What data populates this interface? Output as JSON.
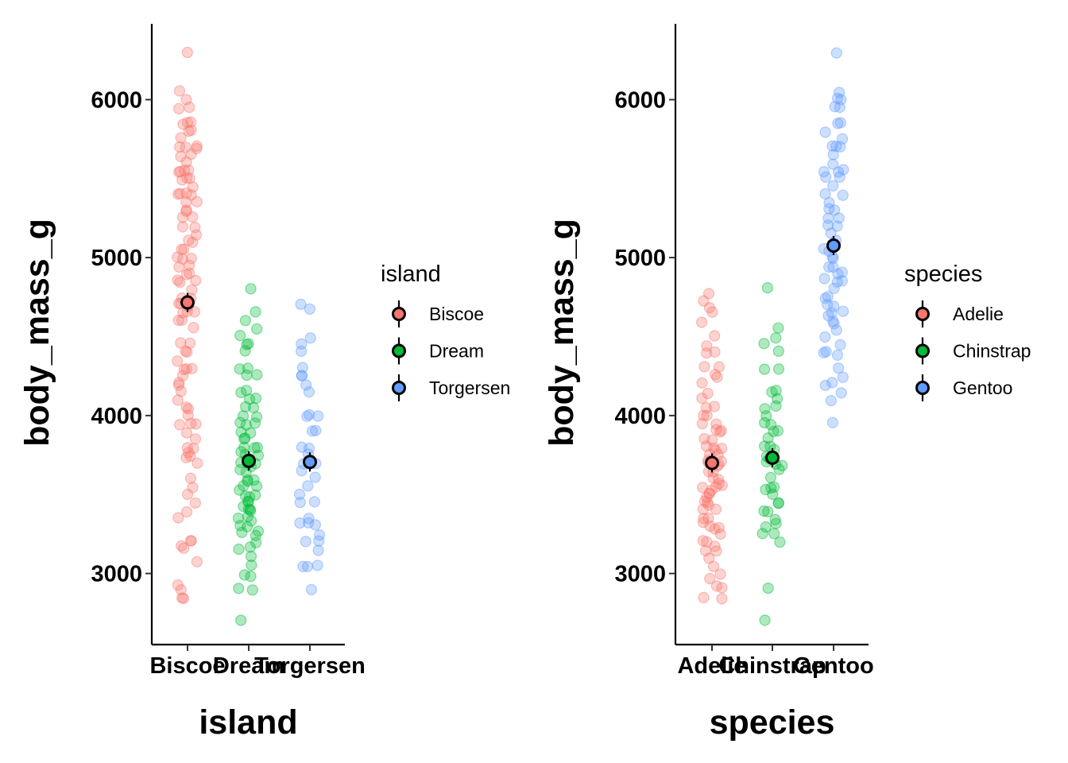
{
  "chart_data": [
    {
      "type": "scatter",
      "subtype": "jitter-with-mean-errorbar",
      "xlabel": "island",
      "ylabel": "body_mass_g",
      "categories": [
        "Biscoe",
        "Dream",
        "Torgersen"
      ],
      "colors": [
        "#F8766D",
        "#00BA38",
        "#619CFF"
      ],
      "ylim": [
        2550,
        6480
      ],
      "yticks": [
        "3000",
        "4000",
        "5000",
        "6000"
      ],
      "legend": {
        "title": "island",
        "position": "right",
        "entries": [
          "Biscoe",
          "Dream",
          "Torgersen"
        ]
      },
      "grid": false,
      "means": [
        4716,
        3713,
        3706
      ],
      "points": [
        [
          6300,
          6050,
          6000,
          5950,
          5950,
          5850,
          5850,
          5850,
          5800,
          5800,
          5750,
          5700,
          5700,
          5700,
          5700,
          5650,
          5650,
          5600,
          5550,
          5550,
          5550,
          5550,
          5500,
          5500,
          5500,
          5450,
          5400,
          5400,
          5400,
          5400,
          5350,
          5350,
          5300,
          5300,
          5250,
          5250,
          5200,
          5200,
          5150,
          5100,
          5100,
          5050,
          5050,
          5000,
          5000,
          5000,
          4950,
          4950,
          4900,
          4900,
          4850,
          4850,
          4850,
          4800,
          4750,
          4750,
          4700,
          4700,
          4700,
          4650,
          4650,
          4650,
          4600,
          4600,
          4550,
          4450,
          4450,
          4400,
          4400,
          4350,
          4300,
          4300,
          4300,
          4250,
          4200,
          4200,
          4150,
          4100,
          4050,
          4050,
          4000,
          3950,
          3950,
          3950,
          3900,
          3850,
          3800,
          3800,
          3775,
          3750,
          3725,
          3700,
          3600,
          3550,
          3500,
          3450,
          3350,
          3400,
          3200,
          3200,
          3175,
          3150,
          3075,
          2925,
          2900,
          2850,
          2850
        ],
        [
          4800,
          4650,
          4600,
          4550,
          4500,
          4450,
          4450,
          4400,
          4300,
          4300,
          4250,
          4250,
          4150,
          4150,
          4100,
          4100,
          4050,
          4050,
          4000,
          4000,
          3950,
          3950,
          3950,
          3900,
          3900,
          3850,
          3850,
          3800,
          3800,
          3800,
          3775,
          3750,
          3750,
          3725,
          3700,
          3700,
          3700,
          3675,
          3650,
          3650,
          3600,
          3600,
          3575,
          3550,
          3550,
          3525,
          3500,
          3500,
          3475,
          3450,
          3450,
          3425,
          3400,
          3400,
          3400,
          3350,
          3350,
          3325,
          3300,
          3300,
          3275,
          3250,
          3250,
          3200,
          3175,
          3150,
          3100,
          3050,
          3000,
          2975,
          2900,
          2900,
          2700
        ],
        [
          4700,
          4675,
          4500,
          4450,
          4400,
          4300,
          4250,
          4250,
          4200,
          4150,
          4000,
          4000,
          4000,
          3900,
          3900,
          3800,
          3800,
          3750,
          3700,
          3700,
          3650,
          3600,
          3550,
          3500,
          3450,
          3450,
          3350,
          3325,
          3325,
          3300,
          3250,
          3200,
          3200,
          3150,
          3050,
          3050,
          3050,
          2900
        ]
      ]
    },
    {
      "type": "scatter",
      "subtype": "jitter-with-mean-errorbar",
      "xlabel": "species",
      "ylabel": "body_mass_g",
      "categories": [
        "Adelie",
        "Chinstrap",
        "Gentoo"
      ],
      "colors": [
        "#F8766D",
        "#00BA38",
        "#619CFF"
      ],
      "ylim": [
        2550,
        6480
      ],
      "yticks": [
        "3000",
        "4000",
        "5000",
        "6000"
      ],
      "legend": {
        "title": "species",
        "position": "right",
        "entries": [
          "Adelie",
          "Chinstrap",
          "Gentoo"
        ]
      },
      "grid": false,
      "means": [
        3700,
        3733,
        5076
      ],
      "points": [
        [
          4775,
          4725,
          4675,
          4650,
          4600,
          4500,
          4450,
          4400,
          4400,
          4300,
          4300,
          4250,
          4250,
          4200,
          4150,
          4100,
          4050,
          4050,
          4000,
          4000,
          3950,
          3950,
          3900,
          3900,
          3900,
          3850,
          3850,
          3800,
          3800,
          3800,
          3775,
          3750,
          3750,
          3725,
          3700,
          3700,
          3700,
          3675,
          3650,
          3650,
          3600,
          3600,
          3575,
          3550,
          3550,
          3550,
          3525,
          3500,
          3500,
          3475,
          3450,
          3450,
          3425,
          3400,
          3400,
          3350,
          3350,
          3325,
          3300,
          3300,
          3275,
          3250,
          3200,
          3200,
          3175,
          3150,
          3150,
          3100,
          3050,
          3000,
          2975,
          2925,
          2900,
          2850,
          2850
        ],
        [
          4800,
          4550,
          4500,
          4450,
          4400,
          4300,
          4300,
          4150,
          4150,
          4100,
          4050,
          4050,
          4000,
          3950,
          3950,
          3900,
          3900,
          3850,
          3800,
          3800,
          3775,
          3750,
          3725,
          3700,
          3700,
          3675,
          3650,
          3600,
          3550,
          3550,
          3525,
          3500,
          3450,
          3450,
          3400,
          3400,
          3350,
          3325,
          3300,
          3250,
          3250,
          3200,
          2900,
          2700
        ],
        [
          6300,
          6050,
          6000,
          6000,
          5950,
          5950,
          5850,
          5850,
          5800,
          5750,
          5700,
          5700,
          5700,
          5650,
          5600,
          5550,
          5550,
          5550,
          5500,
          5500,
          5450,
          5400,
          5400,
          5350,
          5300,
          5300,
          5250,
          5250,
          5200,
          5200,
          5150,
          5100,
          5050,
          5050,
          5000,
          5000,
          4950,
          4950,
          4900,
          4900,
          4875,
          4850,
          4850,
          4800,
          4750,
          4750,
          4700,
          4700,
          4650,
          4650,
          4625,
          4600,
          4575,
          4550,
          4500,
          4450,
          4400,
          4400,
          4375,
          4300,
          4250,
          4200,
          4200,
          4150,
          4100,
          3950
        ]
      ]
    }
  ]
}
